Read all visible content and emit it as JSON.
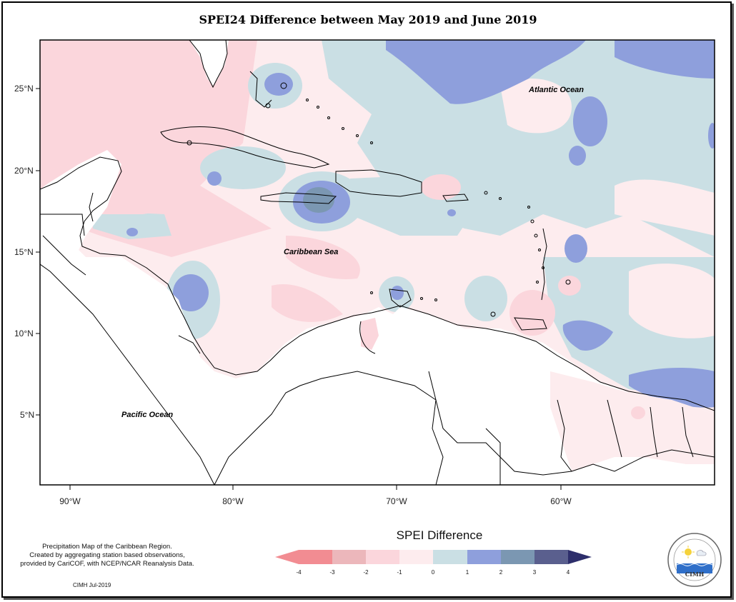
{
  "title": "SPEI24 Difference between May 2019 and June 2019",
  "map": {
    "region": "Caribbean",
    "lon_range": [
      "92°W",
      "51°W"
    ],
    "lat_range": [
      "1°N",
      "28°N"
    ],
    "lat_ticks": [
      "25°N",
      "20°N",
      "15°N",
      "10°N",
      "5°N"
    ],
    "lon_ticks": [
      "90°W",
      "80°W",
      "70°W",
      "60°W"
    ],
    "labels": {
      "atlantic": "Atlantic Ocean",
      "caribbean": "Caribbean Sea",
      "pacific": "Pacific Ocean"
    }
  },
  "legend": {
    "title": "SPEI Difference",
    "ticks": [
      "-4",
      "-3",
      "-2",
      "-1",
      "0",
      "1",
      "2",
      "3",
      "4"
    ],
    "colors": [
      "#f28c92",
      "#ecb7bb",
      "#fbd6dc",
      "#fdecee",
      "#cadfe4",
      "#8e9fdc",
      "#7b97b2",
      "#5a5f8e",
      "#2d2e6b"
    ]
  },
  "credit": {
    "lines": [
      "Precipitation Map of the Caribbean Region.",
      "Created by aggregating station based observations,",
      "provided by CariCOF, with NCEP/NCAR Reanalysis Data."
    ],
    "date": "CIMH Jul-2019"
  },
  "logo": {
    "text": "CIMH",
    "icon": "cimh-logo-icon"
  }
}
